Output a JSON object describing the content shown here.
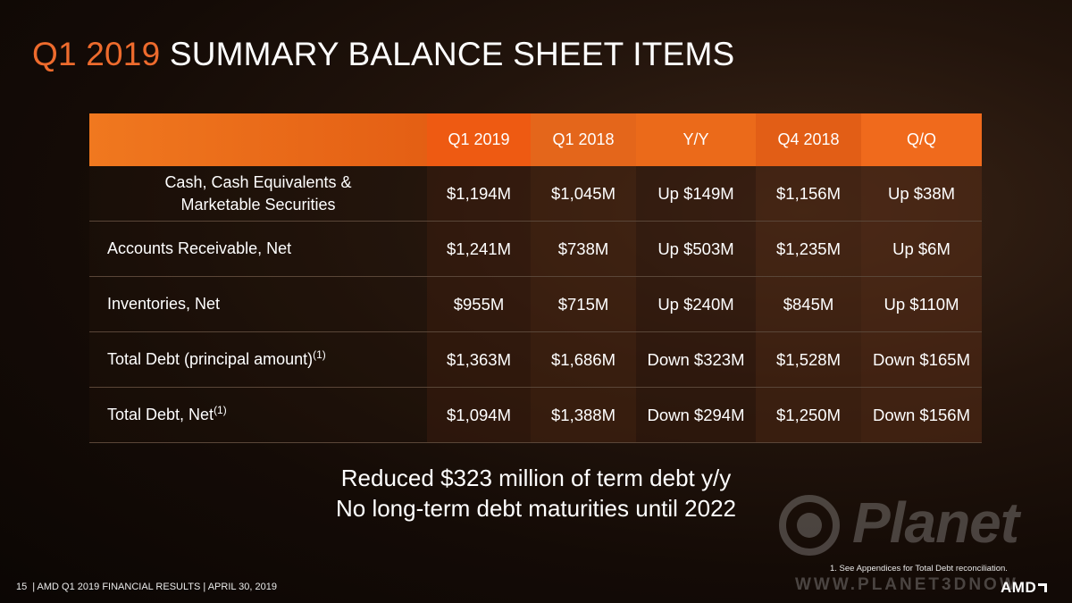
{
  "title": {
    "highlight": "Q1 2019",
    "rest": "SUMMARY BALANCE SHEET ITEMS"
  },
  "table": {
    "columns": [
      "Q1 2019",
      "Q1 2018",
      "Y/Y",
      "Q4 2018",
      "Q/Q"
    ],
    "rows": [
      {
        "label_line1": "Cash, Cash Equivalents &",
        "label_line2": "Marketable Securities",
        "values": [
          "$1,194M",
          "$1,045M",
          "Up $149M",
          "$1,156M",
          "Up $38M"
        ]
      },
      {
        "label": "Accounts Receivable, Net",
        "values": [
          "$1,241M",
          "$738M",
          "Up $503M",
          "$1,235M",
          "Up $6M"
        ]
      },
      {
        "label": "Inventories, Net",
        "values": [
          "$955M",
          "$715M",
          "Up $240M",
          "$845M",
          "Up $110M"
        ]
      },
      {
        "label": "Total Debt (principal amount)",
        "sup": "(1)",
        "values": [
          "$1,363M",
          "$1,686M",
          "Down $323M",
          "$1,528M",
          "Down $165M"
        ]
      },
      {
        "label": "Total Debt, Net",
        "sup": "(1)",
        "values": [
          "$1,094M",
          "$1,388M",
          "Down $294M",
          "$1,250M",
          "Down $156M"
        ]
      }
    ]
  },
  "summary": {
    "line1": "Reduced $323 million of term debt y/y",
    "line2": "No long-term debt maturities until 2022"
  },
  "footnote": "1.    See Appendices for Total Debt reconciliation.",
  "footer": {
    "page": "15",
    "text": "| AMD Q1 2019 FINANCIAL RESULTS | APRIL 30, 2019"
  },
  "logo": "AMD",
  "watermark": {
    "brand": "Planet",
    "url": "WWW.PLANET3DNOW"
  },
  "colors": {
    "accent": "#ee6b2d",
    "header_bg": "#e86a1d",
    "background": "#1a0f08"
  }
}
